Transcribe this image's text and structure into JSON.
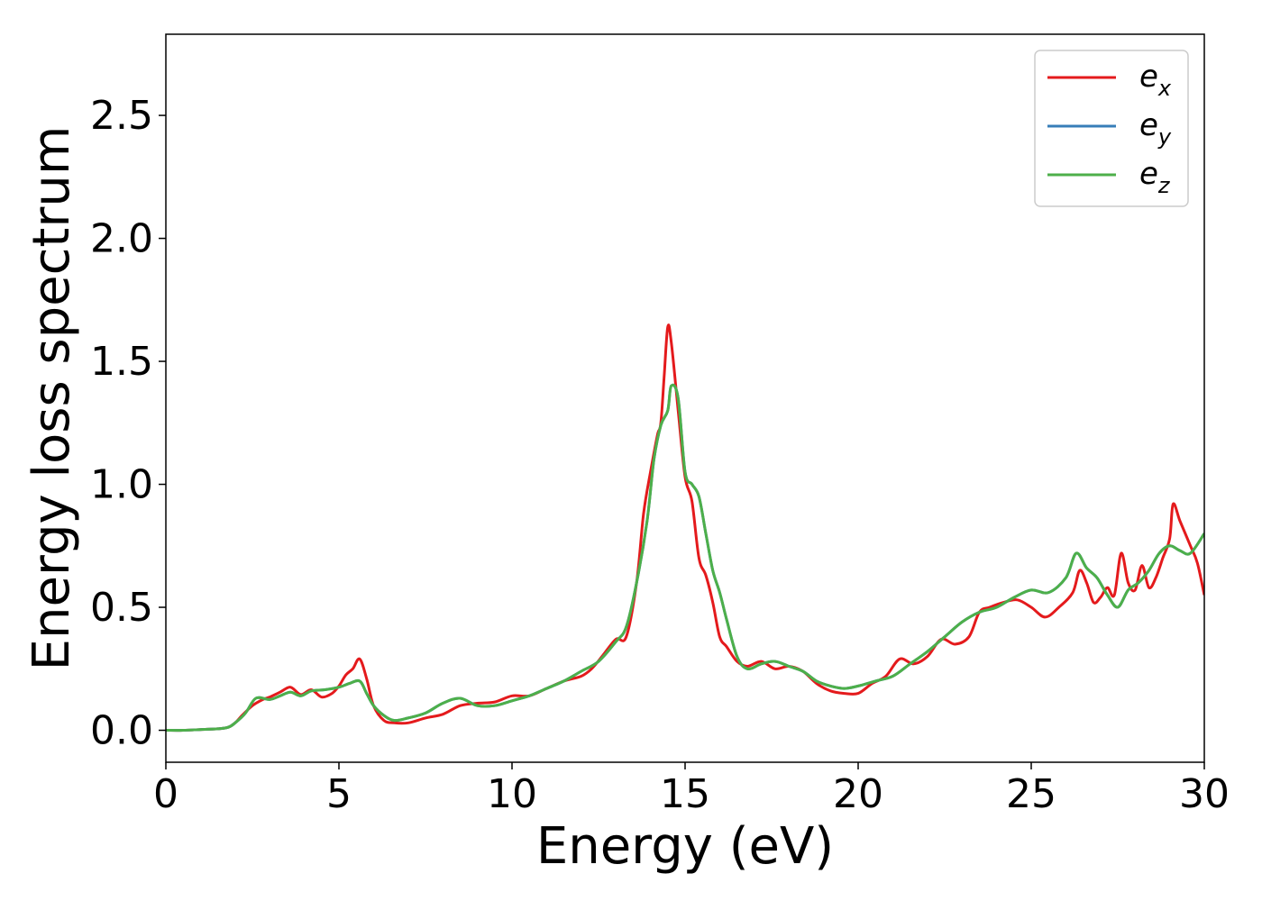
{
  "chart_data": {
    "type": "line",
    "xlabel": "Energy (eV)",
    "ylabel": "Energy loss spectrum",
    "xlim": [
      0,
      30
    ],
    "ylim": [
      -0.13,
      2.83
    ],
    "xticks": [
      0,
      5,
      10,
      15,
      20,
      25,
      30
    ],
    "yticks": [
      0.0,
      0.5,
      1.0,
      1.5,
      2.0,
      2.5
    ],
    "xtick_labels": [
      "0",
      "5",
      "10",
      "15",
      "20",
      "25",
      "30"
    ],
    "ytick_labels": [
      "0.0",
      "0.5",
      "1.0",
      "1.5",
      "2.0",
      "2.5"
    ],
    "grid": false,
    "legend_position": "top-right",
    "series": [
      {
        "name": "e",
        "subscript": "x",
        "color": "#e41a1c",
        "x": [
          0,
          0.5,
          1,
          1.5,
          1.8,
          2.0,
          2.2,
          2.5,
          2.8,
          3.0,
          3.3,
          3.6,
          3.9,
          4.2,
          4.5,
          4.8,
          5.0,
          5.2,
          5.4,
          5.6,
          5.8,
          6.0,
          6.3,
          6.6,
          7.0,
          7.5,
          8.0,
          8.5,
          9.0,
          9.5,
          10.0,
          10.5,
          11.0,
          11.5,
          12.0,
          12.3,
          12.6,
          13.0,
          13.3,
          13.6,
          13.8,
          14.0,
          14.2,
          14.3,
          14.4,
          14.5,
          14.6,
          14.8,
          15.0,
          15.2,
          15.4,
          15.6,
          15.8,
          16.0,
          16.2,
          16.5,
          16.8,
          17.2,
          17.6,
          18.0,
          18.4,
          18.8,
          19.2,
          19.6,
          20.0,
          20.4,
          20.8,
          21.2,
          21.6,
          22.0,
          22.4,
          22.8,
          23.2,
          23.5,
          23.8,
          24.2,
          24.6,
          25.0,
          25.4,
          25.8,
          26.2,
          26.4,
          26.6,
          26.8,
          27.0,
          27.2,
          27.4,
          27.6,
          27.8,
          28.0,
          28.2,
          28.4,
          28.6,
          28.8,
          29.0,
          29.1,
          29.3,
          29.6,
          29.8,
          30.0
        ],
        "y": [
          0.0,
          0.0,
          0.003,
          0.006,
          0.012,
          0.03,
          0.06,
          0.1,
          0.125,
          0.135,
          0.155,
          0.175,
          0.145,
          0.165,
          0.135,
          0.15,
          0.18,
          0.225,
          0.25,
          0.29,
          0.21,
          0.1,
          0.04,
          0.03,
          0.03,
          0.05,
          0.065,
          0.1,
          0.11,
          0.115,
          0.14,
          0.14,
          0.17,
          0.2,
          0.22,
          0.25,
          0.3,
          0.37,
          0.38,
          0.6,
          0.88,
          1.05,
          1.2,
          1.25,
          1.45,
          1.64,
          1.58,
          1.3,
          1.03,
          0.93,
          0.7,
          0.63,
          0.52,
          0.38,
          0.34,
          0.28,
          0.26,
          0.28,
          0.25,
          0.26,
          0.24,
          0.19,
          0.16,
          0.15,
          0.15,
          0.19,
          0.22,
          0.29,
          0.27,
          0.3,
          0.37,
          0.35,
          0.38,
          0.48,
          0.5,
          0.52,
          0.53,
          0.5,
          0.46,
          0.5,
          0.56,
          0.65,
          0.6,
          0.52,
          0.54,
          0.58,
          0.55,
          0.72,
          0.6,
          0.57,
          0.67,
          0.58,
          0.62,
          0.7,
          0.78,
          0.92,
          0.85,
          0.75,
          0.68,
          0.55
        ]
      },
      {
        "name": "e",
        "subscript": "y",
        "color": "#377eb8",
        "x": [
          0,
          0.5,
          1,
          1.5,
          1.8,
          2.0,
          2.3,
          2.6,
          3.0,
          3.3,
          3.6,
          3.9,
          4.2,
          4.6,
          5.0,
          5.3,
          5.6,
          5.8,
          6.0,
          6.3,
          6.6,
          7.0,
          7.5,
          8.0,
          8.5,
          9.0,
          9.5,
          10.0,
          10.5,
          11.0,
          11.5,
          12.0,
          12.5,
          13.0,
          13.3,
          13.6,
          13.9,
          14.1,
          14.3,
          14.5,
          14.6,
          14.8,
          15.0,
          15.2,
          15.4,
          15.6,
          15.8,
          16.0,
          16.2,
          16.5,
          16.8,
          17.2,
          17.6,
          18.0,
          18.4,
          18.8,
          19.2,
          19.6,
          20.0,
          20.5,
          21.0,
          21.5,
          22.0,
          22.5,
          23.0,
          23.5,
          24.0,
          24.5,
          25.0,
          25.5,
          26.0,
          26.3,
          26.6,
          26.9,
          27.2,
          27.5,
          27.8,
          28.1,
          28.4,
          28.7,
          29.0,
          29.3,
          29.6,
          30.0
        ],
        "y": [
          0.0,
          0.0,
          0.003,
          0.006,
          0.012,
          0.03,
          0.07,
          0.13,
          0.125,
          0.14,
          0.155,
          0.14,
          0.16,
          0.165,
          0.175,
          0.19,
          0.2,
          0.15,
          0.1,
          0.06,
          0.04,
          0.05,
          0.07,
          0.11,
          0.13,
          0.1,
          0.1,
          0.12,
          0.14,
          0.17,
          0.2,
          0.24,
          0.28,
          0.36,
          0.42,
          0.6,
          0.85,
          1.1,
          1.24,
          1.3,
          1.4,
          1.35,
          1.05,
          1.0,
          0.95,
          0.8,
          0.65,
          0.56,
          0.45,
          0.3,
          0.25,
          0.27,
          0.28,
          0.26,
          0.24,
          0.2,
          0.18,
          0.17,
          0.18,
          0.2,
          0.22,
          0.27,
          0.32,
          0.38,
          0.44,
          0.48,
          0.5,
          0.54,
          0.57,
          0.56,
          0.62,
          0.72,
          0.66,
          0.62,
          0.55,
          0.5,
          0.57,
          0.6,
          0.65,
          0.72,
          0.75,
          0.73,
          0.72,
          0.8
        ]
      },
      {
        "name": "e",
        "subscript": "z",
        "color": "#4daf4a",
        "x": [
          0,
          0.5,
          1,
          1.5,
          1.8,
          2.0,
          2.3,
          2.6,
          3.0,
          3.3,
          3.6,
          3.9,
          4.2,
          4.6,
          5.0,
          5.3,
          5.6,
          5.8,
          6.0,
          6.3,
          6.6,
          7.0,
          7.5,
          8.0,
          8.5,
          9.0,
          9.5,
          10.0,
          10.5,
          11.0,
          11.5,
          12.0,
          12.5,
          13.0,
          13.3,
          13.6,
          13.9,
          14.1,
          14.3,
          14.5,
          14.6,
          14.8,
          15.0,
          15.2,
          15.4,
          15.6,
          15.8,
          16.0,
          16.2,
          16.5,
          16.8,
          17.2,
          17.6,
          18.0,
          18.4,
          18.8,
          19.2,
          19.6,
          20.0,
          20.5,
          21.0,
          21.5,
          22.0,
          22.5,
          23.0,
          23.5,
          24.0,
          24.5,
          25.0,
          25.5,
          26.0,
          26.3,
          26.6,
          26.9,
          27.2,
          27.5,
          27.8,
          28.1,
          28.4,
          28.7,
          29.0,
          29.3,
          29.6,
          30.0
        ],
        "y": [
          0.0,
          0.0,
          0.003,
          0.006,
          0.012,
          0.03,
          0.07,
          0.13,
          0.125,
          0.14,
          0.155,
          0.14,
          0.16,
          0.165,
          0.175,
          0.19,
          0.2,
          0.15,
          0.1,
          0.06,
          0.04,
          0.05,
          0.07,
          0.11,
          0.13,
          0.1,
          0.1,
          0.12,
          0.14,
          0.17,
          0.2,
          0.24,
          0.28,
          0.36,
          0.42,
          0.6,
          0.85,
          1.1,
          1.24,
          1.3,
          1.4,
          1.35,
          1.05,
          1.0,
          0.95,
          0.8,
          0.65,
          0.56,
          0.45,
          0.3,
          0.25,
          0.27,
          0.28,
          0.26,
          0.24,
          0.2,
          0.18,
          0.17,
          0.18,
          0.2,
          0.22,
          0.27,
          0.32,
          0.38,
          0.44,
          0.48,
          0.5,
          0.54,
          0.57,
          0.56,
          0.62,
          0.72,
          0.66,
          0.62,
          0.55,
          0.5,
          0.57,
          0.6,
          0.65,
          0.72,
          0.75,
          0.73,
          0.72,
          0.8
        ]
      }
    ]
  }
}
